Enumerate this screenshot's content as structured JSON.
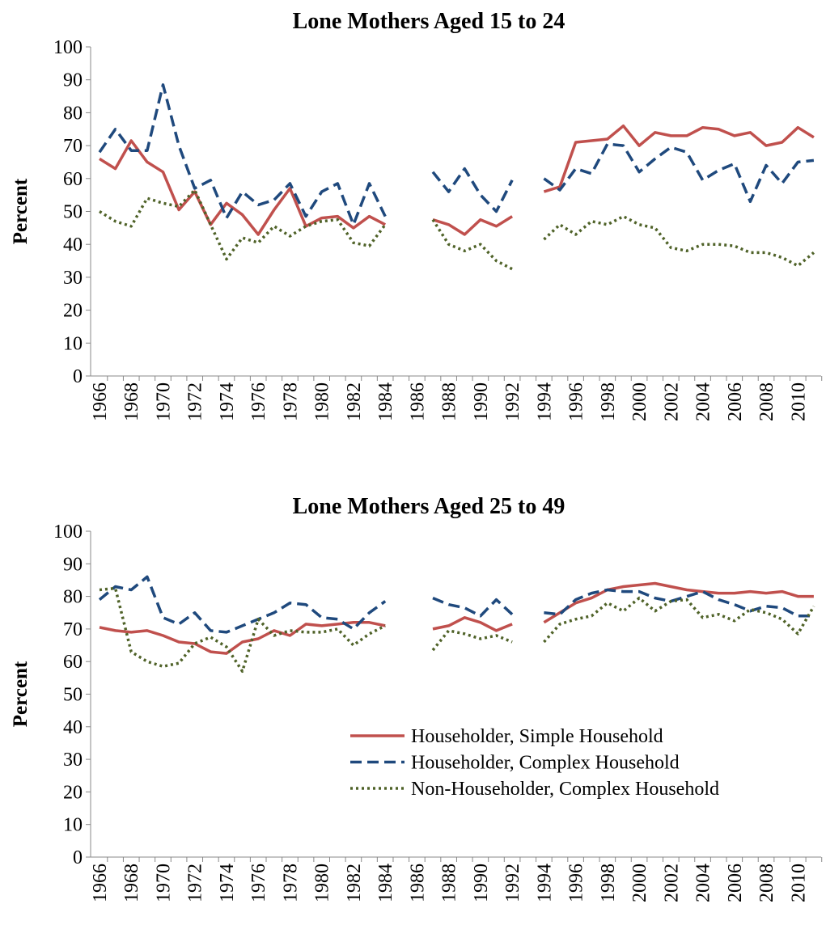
{
  "chart_data": [
    {
      "type": "line",
      "title": "Lone Mothers Aged 15 to 24",
      "ylabel": "Percent",
      "categories": [
        "1966",
        null,
        "1968",
        null,
        "1970",
        null,
        "1972",
        null,
        "1974",
        null,
        "1976",
        null,
        "1978",
        null,
        "1980",
        null,
        "1982",
        null,
        "1984",
        null,
        "1986",
        null,
        "1988",
        null,
        "1990",
        null,
        "1992",
        null,
        "1994",
        null,
        "1996",
        null,
        "1998",
        null,
        "2000",
        null,
        "2002",
        null,
        "2004",
        null,
        "2006",
        null,
        "2008",
        null,
        "2010",
        null
      ],
      "ylim": [
        0,
        100
      ],
      "yticks": [
        0,
        10,
        20,
        30,
        40,
        50,
        60,
        70,
        80,
        90,
        100
      ],
      "legend": false,
      "series": [
        {
          "name": "Householder, Simple Household",
          "color": "#c0504d",
          "style": "solid",
          "values": [
            66,
            63,
            71.5,
            65,
            62,
            50.5,
            56,
            46,
            52.5,
            49,
            43,
            50.5,
            57,
            45.5,
            48,
            48.5,
            45,
            48.5,
            46,
            null,
            null,
            47.5,
            46,
            43,
            47.5,
            45.5,
            48.5,
            null,
            56,
            57.5,
            71,
            71.5,
            72,
            76,
            70,
            74,
            73,
            73,
            75.5,
            75,
            73,
            74,
            70,
            71,
            75.5,
            72.5
          ]
        },
        {
          "name": "Householder, Complex Household",
          "color": "#1f497d",
          "style": "dashed",
          "values": [
            68,
            75,
            68.5,
            68.5,
            88.5,
            70,
            57,
            59.5,
            48,
            56,
            52,
            53.5,
            58.5,
            48.5,
            56,
            58.5,
            46,
            58.5,
            48.5,
            null,
            null,
            62,
            56,
            63,
            55,
            50,
            59.5,
            null,
            60,
            56.5,
            63,
            61.5,
            70.5,
            70,
            62,
            66,
            69.5,
            68,
            59.5,
            62.5,
            64.5,
            53,
            64,
            58.5,
            65,
            65.5
          ]
        },
        {
          "name": "Non-Householder, Complex Household",
          "color": "#4f6228",
          "style": "dotted",
          "values": [
            50,
            47,
            45.5,
            54,
            52.5,
            51.5,
            56.5,
            46,
            35.5,
            42,
            40.5,
            45.5,
            42.5,
            45.5,
            47,
            47.5,
            40.5,
            39.5,
            46,
            null,
            null,
            47.5,
            40,
            38,
            40,
            35,
            32.5,
            null,
            41.5,
            46,
            43,
            47,
            46,
            48.5,
            46,
            45,
            39,
            38,
            40,
            40,
            39.5,
            37.5,
            37.5,
            36,
            33.5,
            37.5
          ]
        }
      ]
    },
    {
      "type": "line",
      "title": "Lone Mothers Aged 25 to 49",
      "ylabel": "Percent",
      "categories": [
        "1966",
        null,
        "1968",
        null,
        "1970",
        null,
        "1972",
        null,
        "1974",
        null,
        "1976",
        null,
        "1978",
        null,
        "1980",
        null,
        "1982",
        null,
        "1984",
        null,
        "1986",
        null,
        "1988",
        null,
        "1990",
        null,
        "1992",
        null,
        "1994",
        null,
        "1996",
        null,
        "1998",
        null,
        "2000",
        null,
        "2002",
        null,
        "2004",
        null,
        "2006",
        null,
        "2008",
        null,
        "2010",
        null
      ],
      "ylim": [
        0,
        100
      ],
      "yticks": [
        0,
        10,
        20,
        30,
        40,
        50,
        60,
        70,
        80,
        90,
        100
      ],
      "legend": "lower right",
      "series": [
        {
          "name": "Householder, Simple Household",
          "color": "#c0504d",
          "style": "solid",
          "values": [
            70.5,
            69.5,
            69,
            69.5,
            68,
            66,
            65.5,
            63,
            62.5,
            66,
            67,
            69.5,
            68,
            71.5,
            71,
            71.5,
            72,
            72,
            71,
            null,
            null,
            70,
            71,
            73.5,
            72,
            69.5,
            71.5,
            null,
            72,
            75,
            78,
            79.5,
            82,
            83,
            83.5,
            84,
            83,
            82,
            81.5,
            81,
            81,
            81.5,
            81,
            81.5,
            80,
            80
          ]
        },
        {
          "name": "Householder, Complex Household",
          "color": "#1f497d",
          "style": "dashed",
          "values": [
            79,
            83,
            82,
            86,
            73.5,
            71.5,
            75,
            69.5,
            69,
            71,
            73,
            75,
            78,
            77.5,
            73.5,
            73,
            70,
            75,
            78.5,
            null,
            null,
            79.5,
            77.5,
            76.5,
            74,
            79,
            74.5,
            null,
            75,
            74.5,
            79,
            81,
            82,
            81.5,
            81.5,
            79.5,
            78.5,
            80,
            81.5,
            79,
            77.5,
            75.5,
            77,
            76.5,
            74,
            74
          ]
        },
        {
          "name": "Non-Householder, Complex Household",
          "color": "#4f6228",
          "style": "dotted",
          "values": [
            82,
            82.5,
            63,
            60,
            58.5,
            59.5,
            65.5,
            67.5,
            64.5,
            57,
            73,
            68,
            69.5,
            69,
            69,
            70,
            65,
            68.5,
            71,
            null,
            null,
            63.5,
            69.5,
            68.5,
            67,
            68,
            66,
            null,
            66,
            71.5,
            73,
            74,
            78,
            75.5,
            79.5,
            75.5,
            78.5,
            79,
            73.5,
            74.5,
            72.5,
            76,
            75,
            73,
            68.5,
            77
          ]
        }
      ]
    }
  ]
}
